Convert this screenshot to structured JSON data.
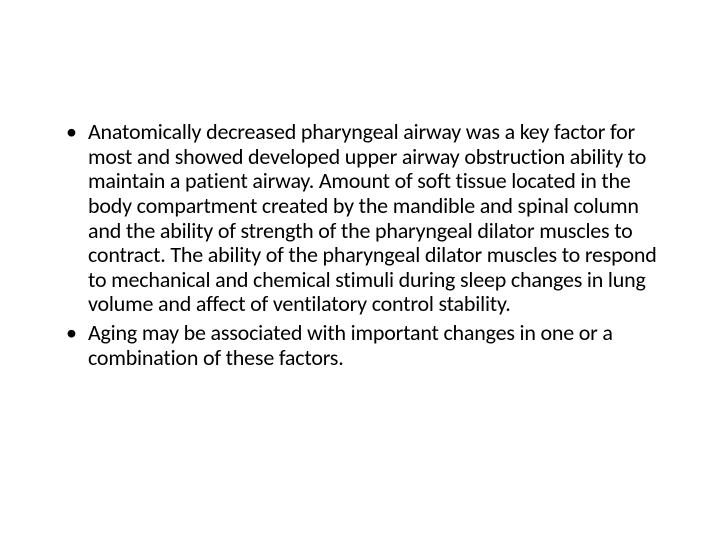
{
  "slide": {
    "background_color": "#ffffff",
    "text_color": "#000000",
    "font_family": "Calibri",
    "font_size_pt": 22,
    "line_height": 1.12,
    "bullets": [
      {
        "text": "Anatomically decreased pharyngeal airway was a key factor for most and showed developed upper airway obstruction ability to maintain a patient airway.  Amount of soft tissue located in the body compartment created by the mandible and spinal column and the ability of strength of the pharyngeal dilator muscles to contract.  The ability of the pharyngeal dilator muscles to respond to mechanical and chemical stimuli during sleep changes in lung volume and affect of ventilatory control stability."
      },
      {
        "text": "Aging may be associated with important changes in one or a combination of these factors."
      }
    ]
  }
}
